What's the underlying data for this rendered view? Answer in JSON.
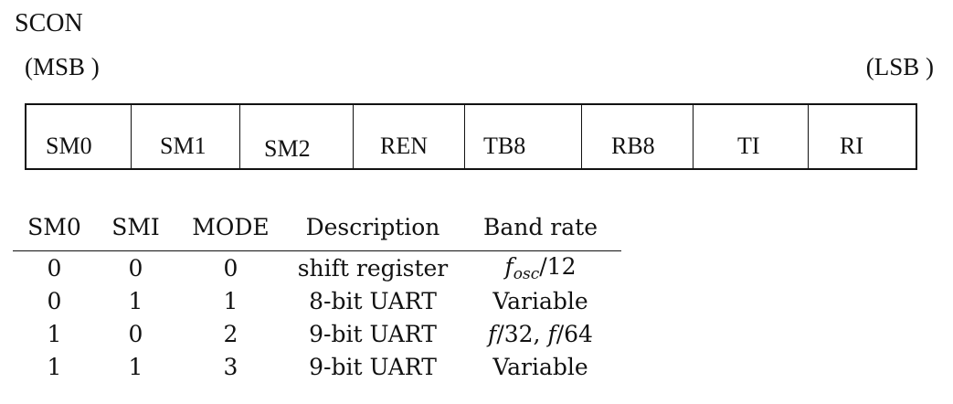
{
  "title": "SCON",
  "msb_label": "(MSB )",
  "lsb_label": "(LSB )",
  "register_bits": [
    "SM0",
    "SM1",
    "SM2",
    "REN",
    "TB8",
    "RB8",
    "TI",
    "RI"
  ],
  "mode_table": {
    "headers": [
      "SM0",
      "SMI",
      "MODE",
      "Description",
      "Band rate"
    ],
    "rows": [
      {
        "sm0": "0",
        "sm1": "0",
        "mode": "0",
        "description": "shift register",
        "rate_plain": "",
        "rate_f": "f",
        "rate_sub": "osc",
        "rate_rest": "/12"
      },
      {
        "sm0": "0",
        "sm1": "1",
        "mode": "1",
        "description": "8-bit UART",
        "rate_plain": "Variable"
      },
      {
        "sm0": "1",
        "sm1": "0",
        "mode": "2",
        "description": "9-bit UART",
        "rate_plain": "",
        "rate_f": "f",
        "rate_rest": "/32, ",
        "rate_f2": "f",
        "rate_rest2": "/64"
      },
      {
        "sm0": "1",
        "sm1": "1",
        "mode": "3",
        "description": "9-bit UART",
        "rate_plain": "Variable"
      }
    ]
  }
}
